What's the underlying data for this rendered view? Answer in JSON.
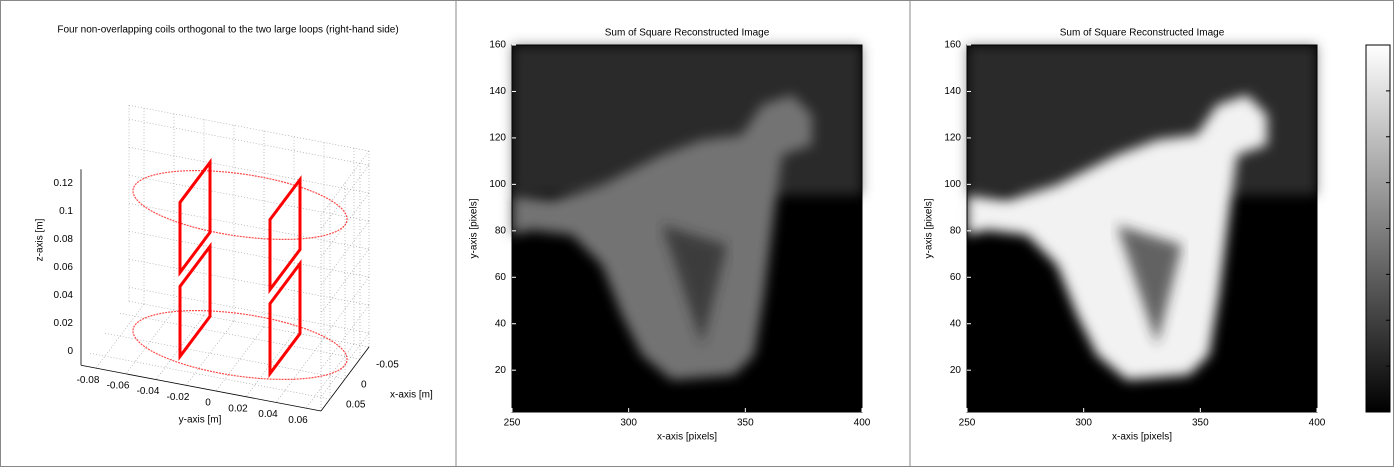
{
  "chart_data": [
    {
      "type": "line3d",
      "title": "Four non-overlapping coils orthogonal to the two large loops (right-hand side)",
      "xlabel": "x-axis [m]",
      "ylabel": "y-axis [m]",
      "zlabel": "z-axis [m]",
      "xlim": [
        -0.08,
        0.08
      ],
      "ylim": [
        -0.09,
        0.07
      ],
      "zlim": [
        -0.01,
        0.13
      ],
      "xticks": [
        -0.05,
        0,
        0.05
      ],
      "yticks": [
        -0.08,
        -0.06,
        -0.04,
        -0.02,
        0,
        0.02,
        0.04,
        0.06
      ],
      "zticks": [
        0,
        0.02,
        0.04,
        0.06,
        0.08,
        0.1,
        0.12
      ],
      "grid": true,
      "color": "#ff0000",
      "loops": [
        {
          "radius": 0.07,
          "z": 0.1
        },
        {
          "radius": 0.07,
          "z": 0.0
        }
      ],
      "coils": [
        {
          "x": [
            0.05,
            -0.05,
            -0.05,
            0.05
          ],
          "y": [
            -0.03,
            -0.03,
            -0.03,
            -0.03
          ],
          "z": [
            0.0,
            0.0,
            0.05,
            0.05
          ]
        },
        {
          "x": [
            0.05,
            -0.05,
            -0.05,
            0.05
          ],
          "y": [
            -0.03,
            -0.03,
            -0.03,
            -0.03
          ],
          "z": [
            0.06,
            0.06,
            0.11,
            0.11
          ]
        },
        {
          "x": [
            0.05,
            -0.05,
            -0.05,
            0.05
          ],
          "y": [
            0.03,
            0.03,
            0.03,
            0.03
          ],
          "z": [
            0.0,
            0.0,
            0.05,
            0.05
          ]
        },
        {
          "x": [
            0.05,
            -0.05,
            -0.05,
            0.05
          ],
          "y": [
            0.03,
            0.03,
            0.03,
            0.03
          ],
          "z": [
            0.06,
            0.06,
            0.11,
            0.11
          ]
        }
      ]
    },
    {
      "type": "image",
      "title": "Sum of Square Reconstructed Image",
      "xlabel": "x-axis [pixels]",
      "ylabel": "y-axis [pixels]",
      "xlim": [
        250,
        400
      ],
      "ylim": [
        2,
        160
      ],
      "xticks": [
        250,
        300,
        350,
        400
      ],
      "yticks": [
        20,
        40,
        60,
        80,
        100,
        120,
        140,
        160
      ],
      "brightness": 0.45
    },
    {
      "type": "image",
      "title": "Sum of Square Reconstructed Image",
      "xlabel": "x-axis [pixels]",
      "ylabel": "y-axis [pixels]",
      "xlim": [
        250,
        400
      ],
      "ylim": [
        2,
        160
      ],
      "xticks": [
        250,
        300,
        350,
        400
      ],
      "yticks": [
        20,
        40,
        60,
        80,
        100,
        120,
        140,
        160
      ],
      "brightness": 0.95,
      "colorbar": true
    }
  ]
}
